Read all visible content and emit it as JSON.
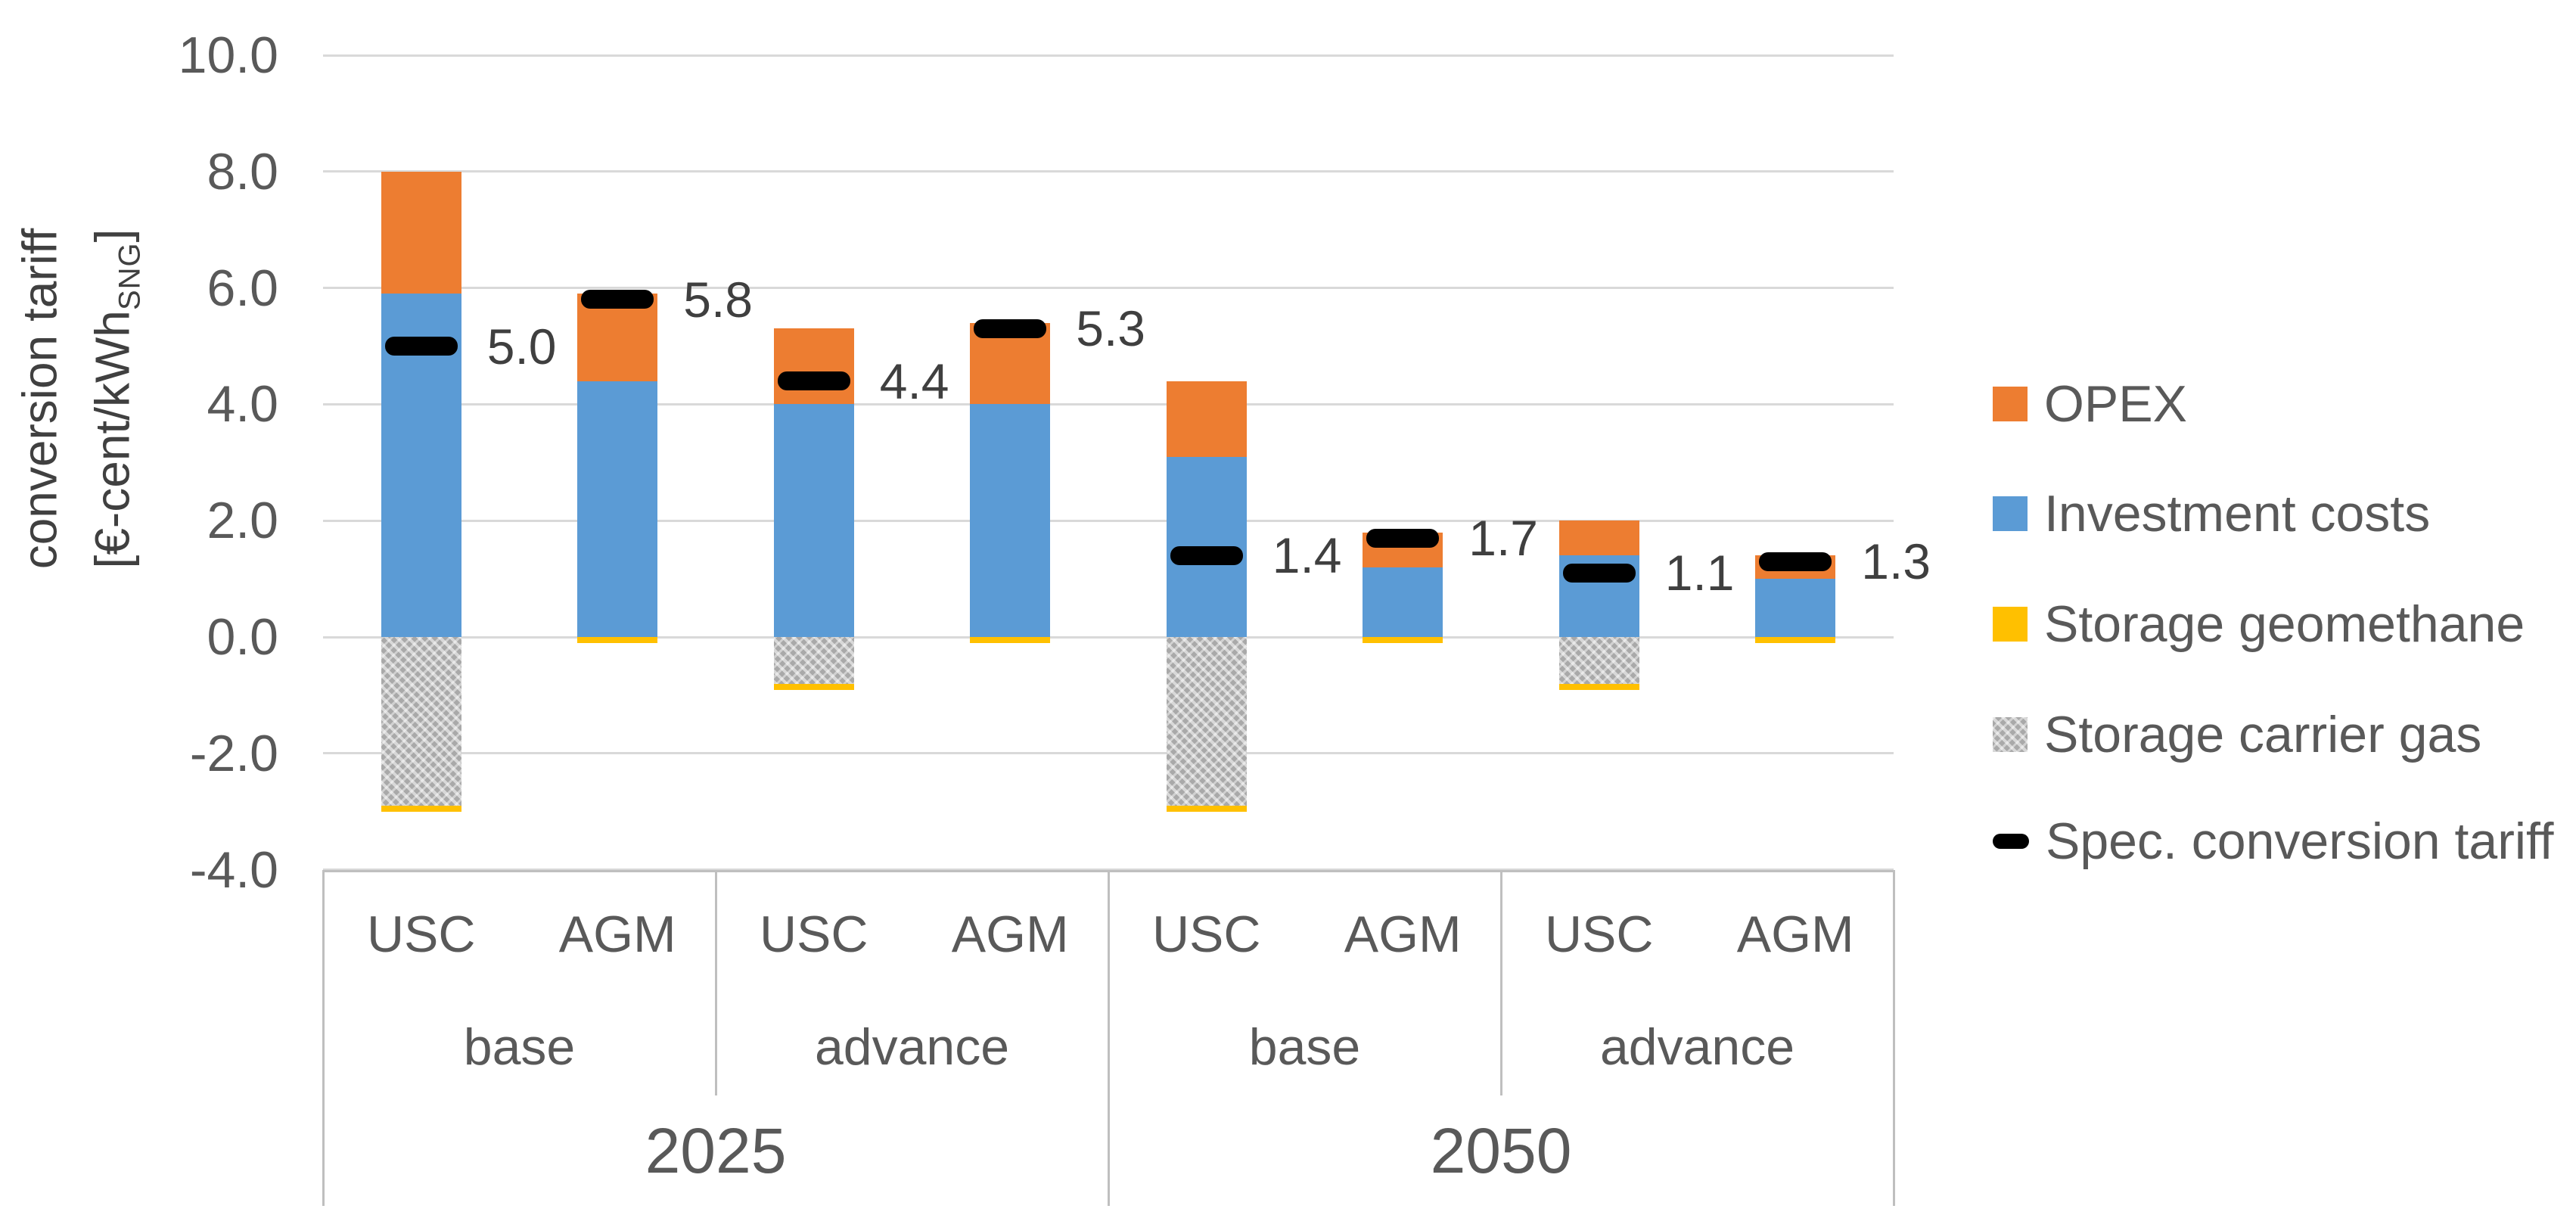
{
  "colors": {
    "opex": "#ED7D31",
    "investment": "#5B9BD5",
    "geomethane": "#FFC000",
    "carrier_gas": "#ACACAC",
    "tariff_marker": "#000000",
    "gridline": "#D9D9D9",
    "axis_text": "#595959",
    "data_label_text": "#3F3F3F",
    "table_border": "#BFBFBF",
    "background": "#FFFFFF"
  },
  "chart_data": {
    "type": "bar",
    "stacked": true,
    "title": "",
    "grid": true,
    "legend_position": "right",
    "y_axis": {
      "title_line1": "conversion tariff",
      "unit_prefix": "[€-cent/kWh",
      "unit_sub": "SNG",
      "unit_suffix": "]",
      "min": -4,
      "max": 10,
      "tick_step": 2,
      "tick_values": [
        10,
        8,
        6,
        4,
        2,
        0,
        -2,
        -4
      ],
      "tick_labels": [
        "10.0",
        "8.0",
        "6.0",
        "4.0",
        "2.0",
        "0.0",
        "-2.0",
        "-4.0"
      ]
    },
    "legend": [
      {
        "label": "OPEX",
        "series": "opex",
        "swatch": "square"
      },
      {
        "label": "Investment costs",
        "series": "investment",
        "swatch": "square"
      },
      {
        "label": "Storage geomethane",
        "series": "geomethane",
        "swatch": "square"
      },
      {
        "label": "Storage carrier gas",
        "series": "carrier_gas",
        "swatch": "hatch"
      },
      {
        "label": "Spec. conversion tariff",
        "series": "tariff_marker",
        "swatch": "dash"
      }
    ],
    "bars": [
      {
        "year": "2025",
        "group": "base",
        "tech": "USC",
        "investment_costs": 5.9,
        "opex": 2.1,
        "storage_carrier_gas": -2.9,
        "storage_geomethane": -0.1,
        "spec_conversion_tariff": 5.0,
        "data_label": "5.0"
      },
      {
        "year": "2025",
        "group": "base",
        "tech": "AGM",
        "investment_costs": 4.4,
        "opex": 1.5,
        "storage_carrier_gas": 0,
        "storage_geomethane": -0.1,
        "spec_conversion_tariff": 5.8,
        "data_label": "5.8"
      },
      {
        "year": "2025",
        "group": "advance",
        "tech": "USC",
        "investment_costs": 4.0,
        "opex": 1.3,
        "storage_carrier_gas": -0.8,
        "storage_geomethane": -0.1,
        "spec_conversion_tariff": 4.4,
        "data_label": "4.4"
      },
      {
        "year": "2025",
        "group": "advance",
        "tech": "AGM",
        "investment_costs": 4.0,
        "opex": 1.4,
        "storage_carrier_gas": 0,
        "storage_geomethane": -0.1,
        "spec_conversion_tariff": 5.3,
        "data_label": "5.3"
      },
      {
        "year": "2050",
        "group": "base",
        "tech": "USC",
        "investment_costs": 3.1,
        "opex": 1.3,
        "storage_carrier_gas": -2.9,
        "storage_geomethane": -0.1,
        "spec_conversion_tariff": 1.4,
        "data_label": "1.4"
      },
      {
        "year": "2050",
        "group": "base",
        "tech": "AGM",
        "investment_costs": 1.2,
        "opex": 0.6,
        "storage_carrier_gas": 0,
        "storage_geomethane": -0.1,
        "spec_conversion_tariff": 1.7,
        "data_label": "1.7"
      },
      {
        "year": "2050",
        "group": "advance",
        "tech": "USC",
        "investment_costs": 1.4,
        "opex": 0.6,
        "storage_carrier_gas": -0.8,
        "storage_geomethane": -0.1,
        "spec_conversion_tariff": 1.1,
        "data_label": "1.1"
      },
      {
        "year": "2050",
        "group": "advance",
        "tech": "AGM",
        "investment_costs": 1.0,
        "opex": 0.4,
        "storage_carrier_gas": 0,
        "storage_geomethane": -0.1,
        "spec_conversion_tariff": 1.3,
        "data_label": "1.3"
      }
    ],
    "category_axis": {
      "level1": [
        "USC",
        "AGM",
        "USC",
        "AGM",
        "USC",
        "AGM",
        "USC",
        "AGM"
      ],
      "level2": [
        {
          "label": "base",
          "span": 2
        },
        {
          "label": "advance",
          "span": 2
        },
        {
          "label": "base",
          "span": 2
        },
        {
          "label": "advance",
          "span": 2
        }
      ],
      "level3": [
        {
          "label": "2025",
          "span": 4
        },
        {
          "label": "2050",
          "span": 4
        }
      ]
    }
  }
}
